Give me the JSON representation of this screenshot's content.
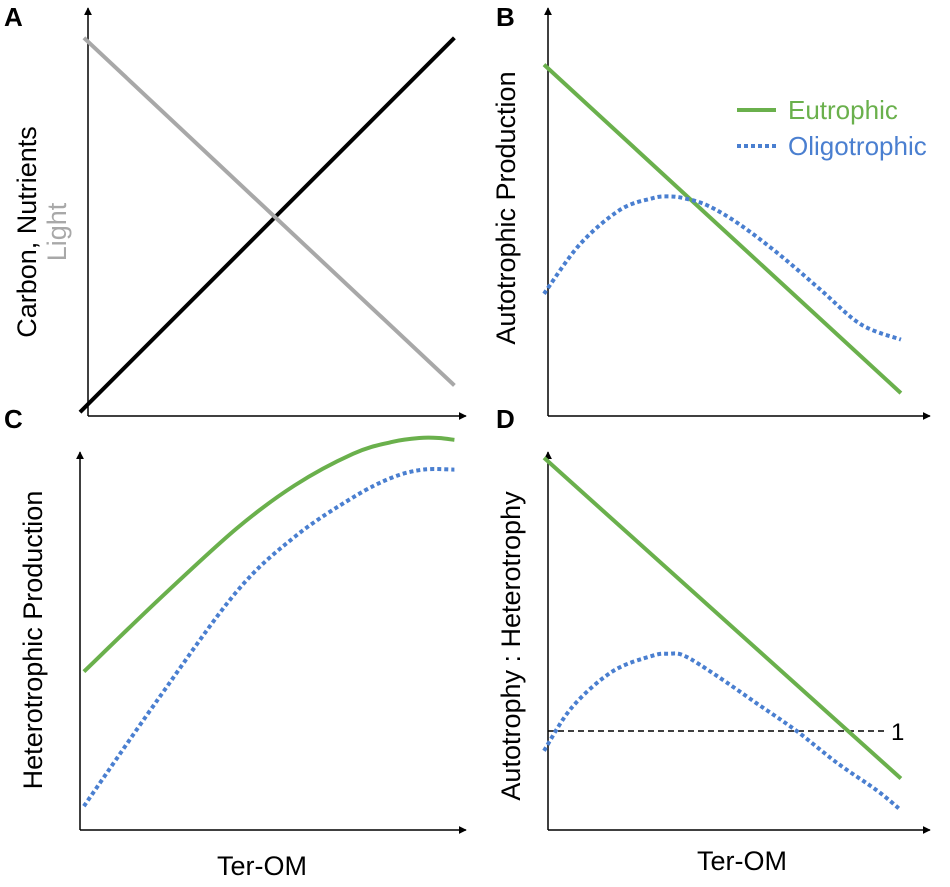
{
  "figure": {
    "colors": {
      "eutrophic": "#6ab04c",
      "oligotrophic": "#4a7fd0",
      "light": "#a8a8a8",
      "carbon": "#000000",
      "axis": "#000000"
    }
  },
  "legend": {
    "eutrophic": "Eutrophic",
    "oligotrophic": "Oligotrophic"
  },
  "chart_data": [
    {
      "panel": "A",
      "type": "line",
      "title": "",
      "xlabel": "",
      "ylabel": "Carbon, Nutrients",
      "ylabel2": "Light",
      "xlim": [
        0,
        1
      ],
      "ylim": [
        0,
        1
      ],
      "series": [
        {
          "name": "Carbon, Nutrients",
          "color_key": "carbon",
          "style": "solid",
          "x": [
            0,
            0.96
          ],
          "y": [
            0.01,
            0.99
          ]
        },
        {
          "name": "Light",
          "color_key": "light",
          "style": "solid",
          "x": [
            0.01,
            0.96
          ],
          "y": [
            0.99,
            0.08
          ]
        }
      ]
    },
    {
      "panel": "B",
      "type": "line",
      "title": "",
      "xlabel": "",
      "ylabel": "Autotrophic Production",
      "xlim": [
        0,
        1
      ],
      "ylim": [
        0,
        1
      ],
      "series": [
        {
          "name": "Eutrophic",
          "color_key": "eutrophic",
          "style": "solid",
          "x": [
            0.03,
            0.92
          ],
          "y": [
            0.92,
            0.06
          ]
        },
        {
          "name": "Oligotrophic",
          "color_key": "oligotrophic",
          "style": "dotted",
          "x": [
            0.03,
            0.12,
            0.22,
            0.3,
            0.34,
            0.38,
            0.44,
            0.52,
            0.62,
            0.72,
            0.82,
            0.92
          ],
          "y": [
            0.32,
            0.45,
            0.54,
            0.57,
            0.575,
            0.57,
            0.55,
            0.5,
            0.42,
            0.33,
            0.24,
            0.2
          ]
        }
      ]
    },
    {
      "panel": "C",
      "type": "line",
      "title": "",
      "xlabel": "Ter-OM",
      "ylabel": "Heterotrophic Production",
      "xlim": [
        0,
        1
      ],
      "ylim": [
        0,
        1
      ],
      "series": [
        {
          "name": "Eutrophic",
          "color_key": "eutrophic",
          "style": "solid",
          "x": [
            0.01,
            0.2,
            0.4,
            0.55,
            0.7,
            0.8,
            0.87,
            0.92,
            0.96
          ],
          "y": [
            0.4,
            0.58,
            0.76,
            0.87,
            0.95,
            0.98,
            0.99,
            0.99,
            0.985
          ]
        },
        {
          "name": "Oligotrophic",
          "color_key": "oligotrophic",
          "style": "dotted",
          "x": [
            0.01,
            0.2,
            0.4,
            0.55,
            0.7,
            0.8,
            0.88,
            0.96
          ],
          "y": [
            0.06,
            0.33,
            0.6,
            0.74,
            0.84,
            0.89,
            0.91,
            0.91
          ]
        }
      ]
    },
    {
      "panel": "D",
      "type": "line",
      "title": "",
      "xlabel": "Ter-OM",
      "ylabel": "Autotrophy : Heterotrophy",
      "xlim": [
        0,
        1
      ],
      "ylim": [
        0,
        1
      ],
      "reference_line": {
        "y": 0.25,
        "label": "1"
      },
      "series": [
        {
          "name": "Eutrophic",
          "color_key": "eutrophic",
          "style": "solid",
          "x": [
            0.03,
            0.92
          ],
          "y": [
            0.94,
            0.13
          ]
        },
        {
          "name": "Oligotrophic",
          "color_key": "oligotrophic",
          "style": "dotted",
          "x": [
            0.03,
            0.1,
            0.2,
            0.3,
            0.34,
            0.38,
            0.46,
            0.56,
            0.66,
            0.76,
            0.86,
            0.92
          ],
          "y": [
            0.2,
            0.31,
            0.4,
            0.44,
            0.445,
            0.44,
            0.39,
            0.32,
            0.25,
            0.17,
            0.1,
            0.05
          ]
        }
      ]
    }
  ]
}
